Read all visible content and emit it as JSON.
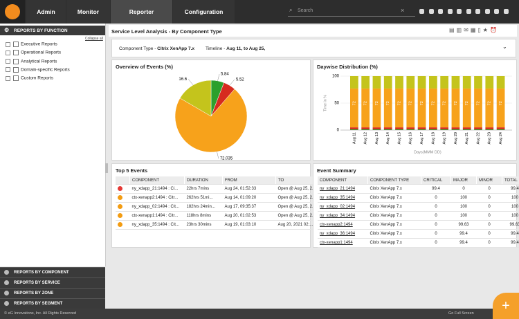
{
  "nav": {
    "tabs": [
      "Admin",
      "Monitor",
      "Reporter",
      "Configuration"
    ],
    "search": "Search"
  },
  "sidebar": {
    "header": "REPORTS BY FUNCTION",
    "collapse": "Collapse all",
    "items": [
      "Executive Reports",
      "Operational Reports",
      "Analytical Reports",
      "Domain-specific Reports",
      "Custom Reports"
    ],
    "sections": [
      "REPORTS BY COMPONENT",
      "REPORTS BY SERVICE",
      "REPORTS BY ZONE",
      "REPORTS BY SEGMENT"
    ]
  },
  "page": {
    "title": "Service Level Analysis - By Component Type",
    "filter": {
      "component_label": "Component Type - ",
      "component": "Citrix XenApp 7.x",
      "timeline_label": "Timeline - ",
      "timeline": "Aug 11, to Aug 25,"
    }
  },
  "chart_data": [
    {
      "type": "pie",
      "title": "Overview of Events (%)",
      "values": [
        5.84,
        5.52,
        72.035,
        16.6
      ],
      "colors": [
        "#2ca02c",
        "#d62b1f",
        "#f7a21b",
        "#c4c41c"
      ]
    },
    {
      "type": "bar",
      "stacked": true,
      "title": "Daywise Distribution (%)",
      "y_label": "Time in %",
      "x_label": "Days(MMM DD)",
      "categories": [
        "Aug 11",
        "Aug 12",
        "Aug 13",
        "Aug 14",
        "Aug 15",
        "Aug 16",
        "Aug 17",
        "Aug 18",
        "Aug 19",
        "Aug 20",
        "Aug 21",
        "Aug 22",
        "Aug 23",
        "Aug 24"
      ],
      "series": [
        {
          "color": "#2ca02c",
          "values": [
            1.5,
            1.5,
            1.5,
            1.5,
            1.5,
            1.5,
            1.5,
            1.5,
            1.5,
            1.5,
            1.5,
            1.5,
            1.5,
            1.5
          ]
        },
        {
          "color": "#d62b1f",
          "values": [
            3.5,
            3.5,
            3.5,
            3.5,
            3.5,
            3.5,
            3.5,
            3.5,
            3.5,
            3.5,
            3.5,
            3.5,
            3.5,
            3.5
          ]
        },
        {
          "color": "#f7a21b",
          "values": [
            72,
            72,
            72,
            72,
            72,
            72,
            72,
            72,
            72,
            72,
            72,
            72,
            72,
            72
          ],
          "show_labels": true
        },
        {
          "color": "#c4c41c",
          "values": [
            23,
            23,
            23,
            23,
            23,
            23,
            23,
            23,
            23,
            23,
            23,
            23,
            23,
            23
          ]
        }
      ],
      "ylim": [
        0,
        100
      ],
      "yticks": [
        0,
        50,
        100
      ],
      "grid": true
    }
  ],
  "top_events": {
    "title": "Top 5 Events",
    "columns": [
      "COMPONENT",
      "DURATION",
      "FROM",
      "TO"
    ],
    "icon_colors": [
      "#e53935",
      "#f39c12",
      "#f39c12",
      "#f39c12",
      "#f39c12"
    ],
    "rows": [
      [
        "ny_xdapp_21:1494 : Ci...",
        "22hrs 7mins",
        "Aug 24, 01:52:33",
        "Open @ Aug 25, 2..."
      ],
      [
        "ctx-xenapp2:1494 : Citr...",
        "262hrs 51mi...",
        "Aug 14, 01:09:20",
        "Open @ Aug 25, 2..."
      ],
      [
        "ny_xdapp_02:1494 : Cit...",
        "182hrs 24min...",
        "Aug 17, 09:35:37",
        "Open @ Aug 25, 2..."
      ],
      [
        "ctx-xenapp1:1494 : Citr...",
        "118hrs 8mins",
        "Aug 20, 01:02:53",
        "Open @ Aug 25, 2..."
      ],
      [
        "ny_xdapp_35:1494 : Cit...",
        "23hrs 30mins",
        "Aug 19, 01:03:10",
        "Aug 20, 2021 02:..."
      ]
    ]
  },
  "event_summary": {
    "title": "Event Summary",
    "columns": [
      "COMPONENT",
      "COMPONENT TYPE",
      "CRITICAL",
      "MAJOR",
      "MINOR",
      "TOTAL"
    ],
    "rows": [
      [
        "ny_xdapp_21:1494",
        "Citrix XenApp 7.x",
        "99.4",
        "0",
        "0",
        "99.4"
      ],
      [
        "ny_xdapp_35:1494",
        "Citrix XenApp 7.x",
        "0",
        "100",
        "0",
        "100"
      ],
      [
        "ny_xdapp_02:1494",
        "Citrix XenApp 7.x",
        "0",
        "100",
        "0",
        "100"
      ],
      [
        "ny_xdapp_34:1494",
        "Citrix XenApp 7.x",
        "0",
        "100",
        "0",
        "100"
      ],
      [
        "ctx-xenapp2:1494",
        "Citrix XenApp 7.x",
        "0",
        "99.63",
        "0",
        "99.63"
      ],
      [
        "ny_xdapp_36:1494",
        "Citrix XenApp 7.x",
        "0",
        "99.4",
        "0",
        "99.4"
      ],
      [
        "ctx-xenapp1:1494",
        "Citrix XenApp 7.x",
        "0",
        "99.4",
        "0",
        "99.4"
      ]
    ]
  },
  "footer": {
    "copyright": "© eG Innovations, Inc. All Rights Reserved",
    "fullscreen": "Go Full Screen"
  }
}
